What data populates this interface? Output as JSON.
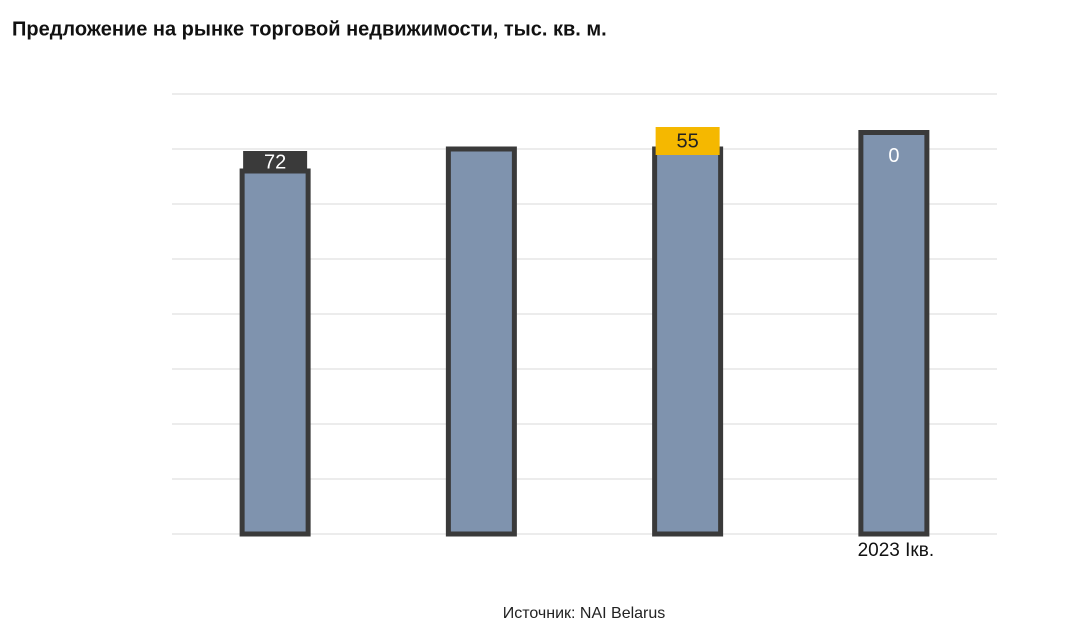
{
  "chart_data": {
    "type": "bar",
    "title": "Предложение на рынке торговой недвижимости, тыс. кв. м.",
    "source": "Источник: NAI Belarus",
    "categories": [
      null,
      null,
      null,
      "2023 Iкв."
    ],
    "values": [
      6.6,
      7.0,
      7.0,
      7.3
    ],
    "color": "#7f93ae",
    "edge_color": "#3a3a3a",
    "ylim": [
      0,
      8
    ],
    "yticks": [
      0,
      1,
      2,
      3,
      4,
      5,
      6,
      7,
      8
    ],
    "ytick_labels": false,
    "grid": true,
    "annotations": [
      {
        "text": "72",
        "bar": 0,
        "background": "#3a3a3a",
        "color": "#ffffff"
      },
      {
        "text": "55",
        "bar": 2,
        "background": "#f5b800",
        "color": "#222222"
      },
      {
        "text": "0",
        "bar": 3,
        "background": "none",
        "color": "#ffffff"
      }
    ]
  }
}
